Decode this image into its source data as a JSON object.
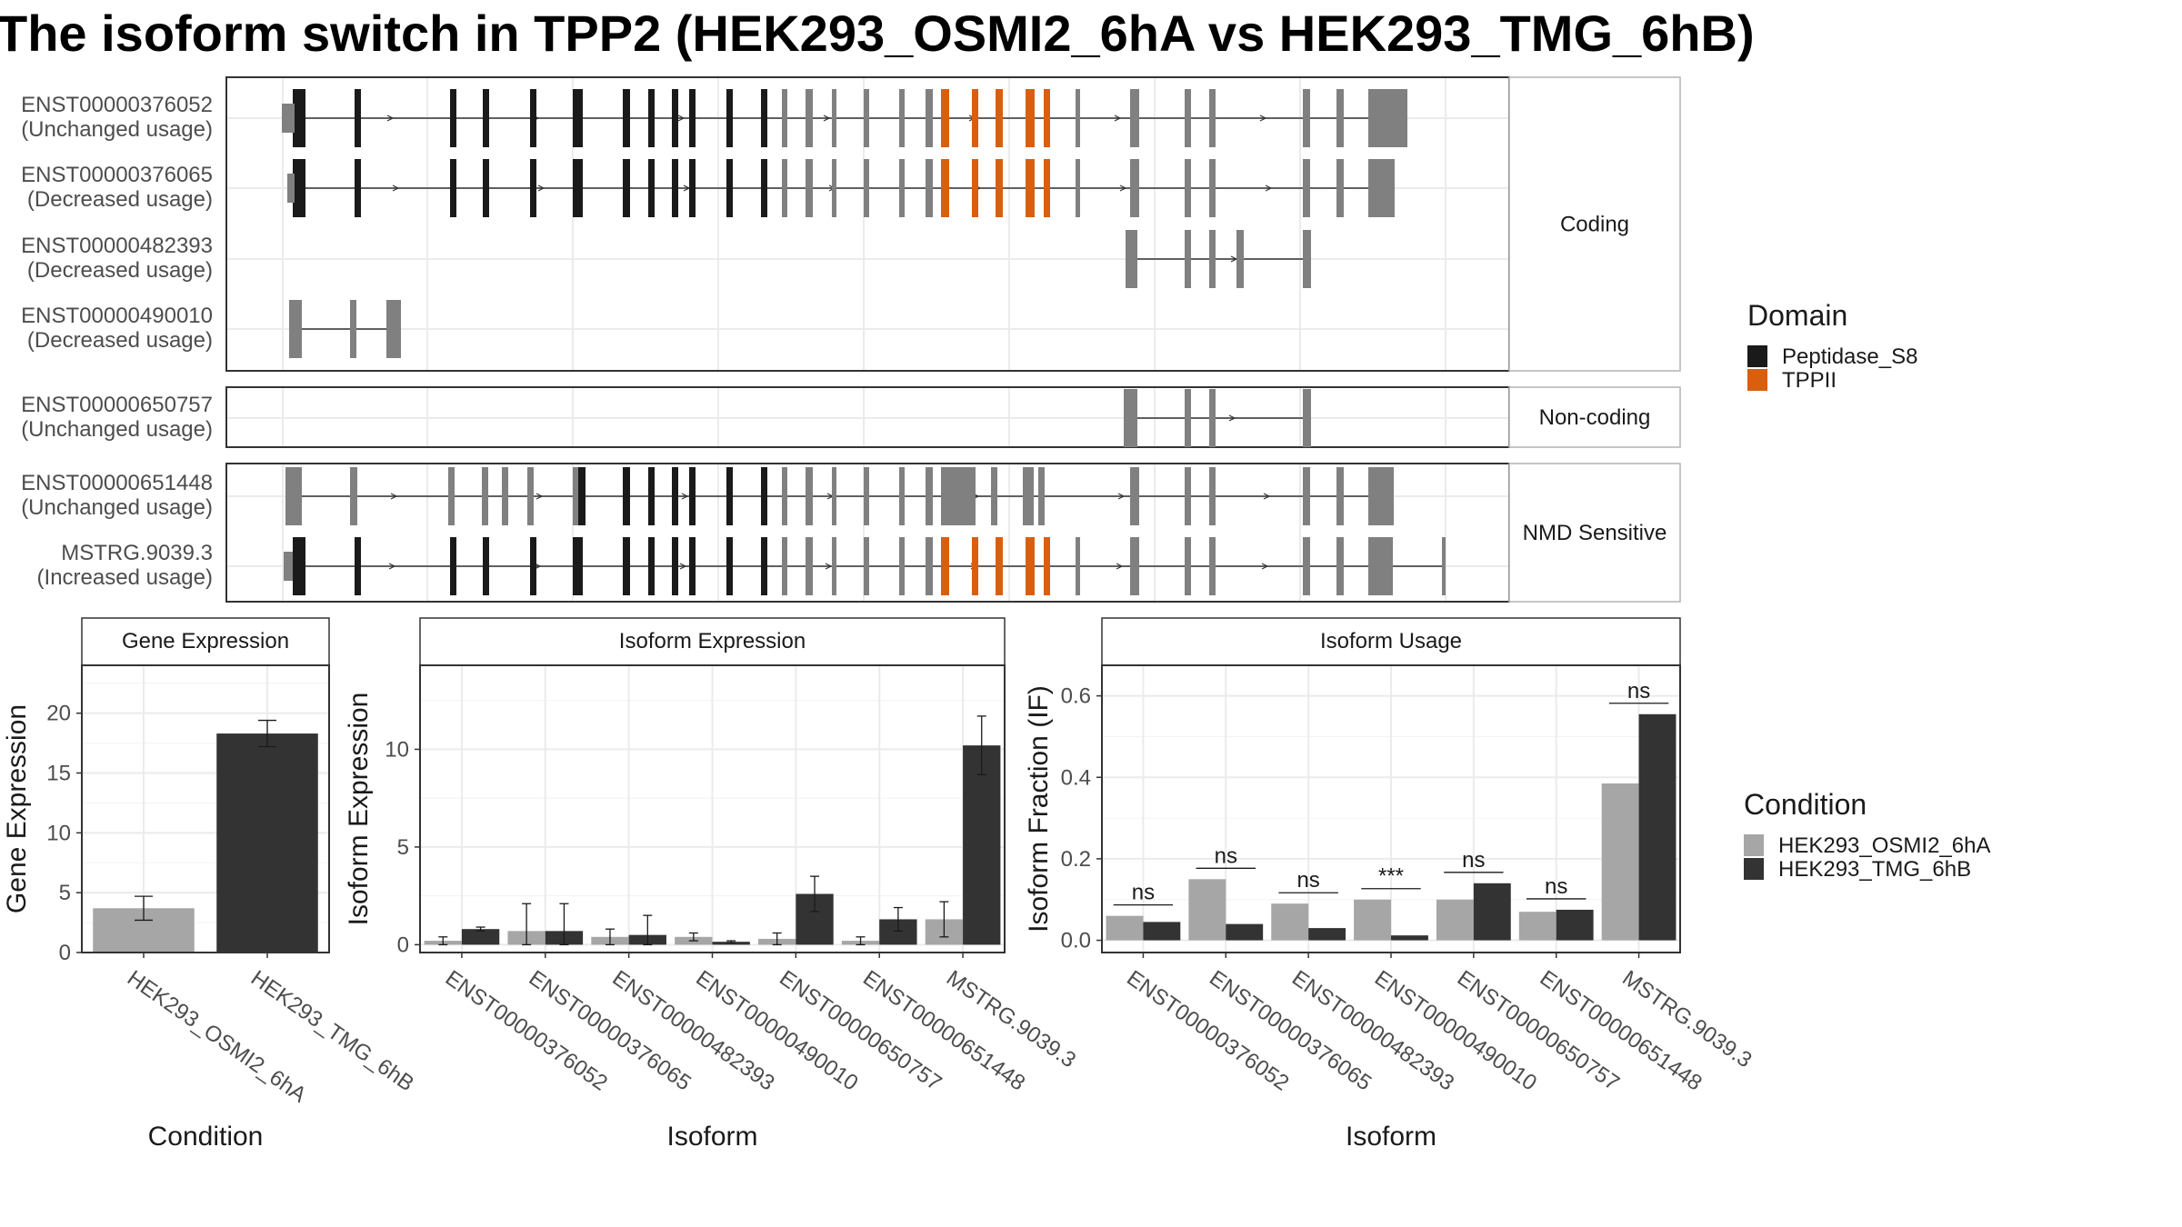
{
  "title": "The isoform switch in TPP2 (HEK293_OSMI2_6hA vs HEK293_TMG_6hB)",
  "colors": {
    "peptidase": "#1a1a1a",
    "tppii": "#d95f0e",
    "exon_gray": "#808080",
    "cond1": "#a6a6a6",
    "cond2": "#333333",
    "grid": "#ebebeb",
    "panel_border": "#333333",
    "strip_border": "#b3b3b3"
  },
  "structure": {
    "legend_title": "Domain",
    "legend_items": [
      {
        "label": "Peptidase_S8",
        "color": "#1a1a1a"
      },
      {
        "label": "TPPII",
        "color": "#d95f0e"
      }
    ],
    "groups": [
      {
        "label": "Coding",
        "transcripts": [
          {
            "id": "ENST00000376052",
            "usage": "(Unchanged usage)"
          },
          {
            "id": "ENST00000376065",
            "usage": "(Decreased usage)"
          },
          {
            "id": "ENST00000482393",
            "usage": "(Decreased usage)"
          },
          {
            "id": "ENST00000490010",
            "usage": "(Decreased usage)"
          }
        ]
      },
      {
        "label": "Non-coding",
        "transcripts": [
          {
            "id": "ENST00000650757",
            "usage": "(Unchanged usage)"
          }
        ]
      },
      {
        "label": "NMD Sensitive",
        "transcripts": [
          {
            "id": "ENST00000651448",
            "usage": "(Unchanged usage)"
          },
          {
            "id": "MSTRG.9039.3",
            "usage": "(Increased usage)"
          }
        ]
      }
    ]
  },
  "chart_data": [
    {
      "type": "bar",
      "title": "Gene Expression",
      "xlabel": "Condition",
      "ylabel": "Gene Expression",
      "categories": [
        "HEK293_OSMI2_6hA",
        "HEK293_TMG_6hB"
      ],
      "values": [
        3.7,
        18.3
      ],
      "errors": [
        [
          2.7,
          4.7
        ],
        [
          17.2,
          19.4
        ]
      ],
      "ylim": [
        0,
        24
      ],
      "yticks": [
        0,
        5,
        10,
        15,
        20
      ]
    },
    {
      "type": "bar",
      "title": "Isoform Expression",
      "xlabel": "Isoform",
      "ylabel": "Isoform Expression",
      "categories": [
        "ENST00000376052",
        "ENST00000376065",
        "ENST00000482393",
        "ENST00000490010",
        "ENST00000650757",
        "ENST00000651448",
        "MSTRG.9039.3"
      ],
      "series": [
        {
          "name": "HEK293_OSMI2_6hA",
          "values": [
            0.2,
            0.7,
            0.4,
            0.4,
            0.3,
            0.2,
            1.3
          ],
          "errors": [
            [
              0.0,
              0.4
            ],
            [
              0.0,
              2.1
            ],
            [
              0.0,
              0.8
            ],
            [
              0.2,
              0.6
            ],
            [
              0.0,
              0.6
            ],
            [
              0.0,
              0.4
            ],
            [
              0.4,
              2.2
            ]
          ]
        },
        {
          "name": "HEK293_TMG_6hB",
          "values": [
            0.8,
            0.7,
            0.5,
            0.15,
            2.6,
            1.3,
            10.2
          ],
          "errors": [
            [
              0.7,
              0.9
            ],
            [
              0.0,
              2.1
            ],
            [
              0.0,
              1.5
            ],
            [
              0.1,
              0.2
            ],
            [
              1.7,
              3.5
            ],
            [
              0.7,
              1.9
            ],
            [
              8.7,
              11.7
            ]
          ]
        }
      ],
      "ylim": [
        -0.4,
        14.3
      ],
      "yticks": [
        0,
        5,
        10
      ]
    },
    {
      "type": "bar",
      "title": "Isoform Usage",
      "xlabel": "Isoform",
      "ylabel": "Isoform Fraction (IF)",
      "categories": [
        "ENST00000376052",
        "ENST00000376065",
        "ENST00000482393",
        "ENST00000490010",
        "ENST00000650757",
        "ENST00000651448",
        "MSTRG.9039.3"
      ],
      "series": [
        {
          "name": "HEK293_OSMI2_6hA",
          "values": [
            0.06,
            0.15,
            0.09,
            0.1,
            0.1,
            0.07,
            0.385
          ]
        },
        {
          "name": "HEK293_TMG_6hB",
          "values": [
            0.045,
            0.04,
            0.03,
            0.012,
            0.14,
            0.075,
            0.555
          ]
        }
      ],
      "significance": [
        "ns",
        "ns",
        "ns",
        "***",
        "ns",
        "ns",
        "ns"
      ],
      "ylim": [
        -0.03,
        0.675
      ],
      "yticks": [
        0.0,
        0.2,
        0.4,
        0.6
      ],
      "ytick_labels": [
        "0.0",
        "0.2",
        "0.4",
        "0.6"
      ]
    }
  ],
  "condition_legend": {
    "title": "Condition",
    "items": [
      {
        "label": "HEK293_OSMI2_6hA",
        "color": "#a6a6a6"
      },
      {
        "label": "HEK293_TMG_6hB",
        "color": "#333333"
      }
    ]
  }
}
